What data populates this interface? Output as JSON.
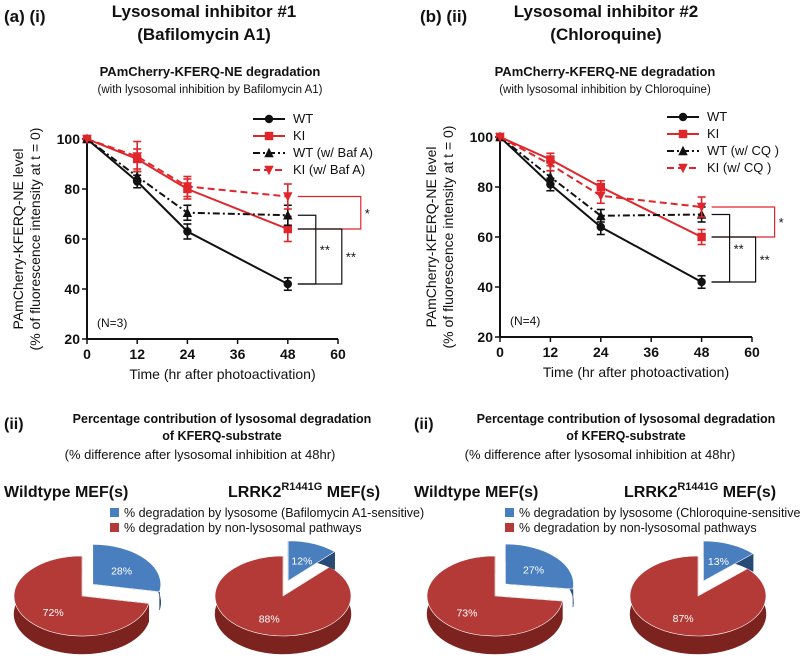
{
  "panel_a": {
    "label": "(a) (i)",
    "header_line1": "Lysosomal inhibitor #1",
    "header_line2": "(Bafilomycin A1)"
  },
  "panel_b": {
    "label": "(b) (ii)",
    "header_line1": "Lysosomal inhibitor #2",
    "header_line2": "(Chloroquine)"
  },
  "pie_a": {
    "label": "(ii)",
    "title_line1": "Percentage contribution of lysosomal degradation",
    "title_line2": "of KFERQ-substrate",
    "note": "(% difference after lysosomal inhibition at 48hr)",
    "header_wt": "Wildtype MEF(s)",
    "header_ki_main": "LRRK2",
    "header_ki_sup": "R1441G",
    "header_ki_tail": " MEF(s)",
    "legend_blue": "% degradation by lysosome (Bafilomycin A1-sensitive)",
    "legend_red": "% degradation by non-lysosomal pathways"
  },
  "pie_b": {
    "label": "(ii)",
    "title_line1": "Percentage contribution of lysosomal degradation",
    "title_line2": "of KFERQ-substrate",
    "note": "(% difference after lysosomal inhibition at 48hr)",
    "header_wt": "Wildtype MEF(s)",
    "header_ki_main": "LRRK2",
    "header_ki_sup": "R1441G",
    "header_ki_tail": " MEF(s)",
    "legend_blue": "% degradation by lysosome (Chloroquine-sensitive)",
    "legend_red": "% degradation by non-lysosomal pathways"
  },
  "colors": {
    "red": "#e0262b",
    "black": "#111111",
    "pie_blue": "#4a7fbf",
    "pie_blue_side": "#274a78",
    "pie_red": "#b33a36",
    "pie_red_side": "#7c2320"
  },
  "chart_data": [
    {
      "type": "line",
      "title": "PAmCherry-KFERQ-NE degradation",
      "subtitle": "(with lysosomal inhibition by Bafilomycin A1)",
      "xlabel": "Time (hr after photoactivation)",
      "ylabel_line1": "PAmCherry-KFERQ-NE level",
      "ylabel_line2": "(% of fluorescence intensity at t = 0)",
      "xlim": [
        0,
        60
      ],
      "ylim": [
        20,
        100
      ],
      "xticks": [
        0,
        12,
        24,
        36,
        48,
        60
      ],
      "yticks": [
        20,
        40,
        60,
        80,
        100
      ],
      "n_label": "(N=3)",
      "series": [
        {
          "name": "WT",
          "color": "black",
          "dash": "solid",
          "marker": "circle",
          "x": [
            0,
            12,
            24,
            48
          ],
          "y": [
            100,
            83,
            63,
            42
          ],
          "err": [
            0,
            2.5,
            3,
            2.5
          ]
        },
        {
          "name": "KI",
          "color": "red",
          "dash": "solid",
          "marker": "square",
          "x": [
            0,
            12,
            24,
            48
          ],
          "y": [
            100,
            92,
            80,
            64
          ],
          "err": [
            0,
            4,
            4,
            5
          ]
        },
        {
          "name": "WT (w/ Baf A)",
          "color": "black",
          "dash": "dashdot",
          "marker": "triangle",
          "x": [
            0,
            12,
            24,
            48
          ],
          "y": [
            100,
            85,
            70.5,
            69.5
          ],
          "err": [
            0,
            2,
            3,
            4
          ]
        },
        {
          "name": "KI (w/ Baf A)",
          "color": "red",
          "dash": "dashed",
          "marker": "triangle-down",
          "x": [
            0,
            12,
            24,
            48
          ],
          "y": [
            100,
            93,
            81,
            77
          ],
          "err": [
            0,
            6,
            4,
            5
          ]
        }
      ],
      "significance": [
        {
          "label": "*",
          "color": "red",
          "between": [
            64,
            77
          ],
          "level": 0
        },
        {
          "label": "**",
          "color": "black",
          "between": [
            42,
            69.5
          ],
          "level": 0
        },
        {
          "label": "**",
          "color": "black",
          "between": [
            42,
            64
          ],
          "level": 1
        }
      ]
    },
    {
      "type": "line",
      "title": "PAmCherry-KFERQ-NE degradation",
      "subtitle": "(with lysosomal inhibition by Chloroquine)",
      "xlabel": "Time (hr after photoactivation)",
      "ylabel_line1": "PAmCherry-KFERQ-NE level",
      "ylabel_line2": "(% of fluorescence intensity at t = 0)",
      "xlim": [
        0,
        60
      ],
      "ylim": [
        20,
        100
      ],
      "xticks": [
        0,
        12,
        24,
        36,
        48,
        60
      ],
      "yticks": [
        20,
        40,
        60,
        80,
        100
      ],
      "n_label": "(N=4)",
      "series": [
        {
          "name": "WT",
          "color": "black",
          "dash": "solid",
          "marker": "circle",
          "x": [
            0,
            12,
            24,
            48
          ],
          "y": [
            100,
            81,
            64,
            42
          ],
          "err": [
            0,
            2.5,
            3,
            2.5
          ]
        },
        {
          "name": "KI",
          "color": "red",
          "dash": "solid",
          "marker": "square",
          "x": [
            0,
            12,
            24,
            48
          ],
          "y": [
            100,
            91,
            80,
            60
          ],
          "err": [
            0,
            2.5,
            2.5,
            3
          ]
        },
        {
          "name": "WT (w/ CQ )",
          "color": "black",
          "dash": "dashdot",
          "marker": "triangle",
          "x": [
            0,
            12,
            24,
            48
          ],
          "y": [
            100,
            84,
            68.5,
            69
          ],
          "err": [
            0,
            2.5,
            2.5,
            3
          ]
        },
        {
          "name": "KI (w/ CQ )",
          "color": "red",
          "dash": "dashed",
          "marker": "triangle-down",
          "x": [
            0,
            12,
            24,
            48
          ],
          "y": [
            100,
            89,
            76.5,
            72
          ],
          "err": [
            0,
            2.5,
            3,
            4
          ]
        }
      ],
      "significance": [
        {
          "label": "*",
          "color": "red",
          "between": [
            60,
            72
          ],
          "level": 0
        },
        {
          "label": "**",
          "color": "black",
          "between": [
            42,
            69
          ],
          "level": 0
        },
        {
          "label": "**",
          "color": "black",
          "between": [
            42,
            60
          ],
          "level": 1
        }
      ]
    },
    {
      "type": "pie",
      "title": "Wildtype MEF(s)",
      "inhibitor": "Bafilomycin A1",
      "slices": [
        {
          "label": "28%",
          "value": 28,
          "category": "lysosome"
        },
        {
          "label": "72%",
          "value": 72,
          "category": "non-lysosomal"
        }
      ]
    },
    {
      "type": "pie",
      "title": "LRRK2 R1441G MEF(s)",
      "inhibitor": "Bafilomycin A1",
      "slices": [
        {
          "label": "12%",
          "value": 12,
          "category": "lysosome"
        },
        {
          "label": "88%",
          "value": 88,
          "category": "non-lysosomal"
        }
      ]
    },
    {
      "type": "pie",
      "title": "Wildtype MEF(s)",
      "inhibitor": "Chloroquine",
      "slices": [
        {
          "label": "27%",
          "value": 27,
          "category": "lysosome"
        },
        {
          "label": "73%",
          "value": 73,
          "category": "non-lysosomal"
        }
      ]
    },
    {
      "type": "pie",
      "title": "LRRK2 R1441G MEF(s)",
      "inhibitor": "Chloroquine",
      "slices": [
        {
          "label": "13%",
          "value": 13,
          "category": "lysosome"
        },
        {
          "label": "87%",
          "value": 87,
          "category": "non-lysosomal"
        }
      ]
    }
  ]
}
